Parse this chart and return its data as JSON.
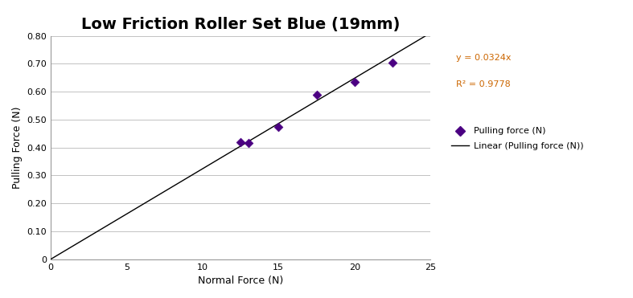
{
  "title": "Low Friction Roller Set Blue (19mm)",
  "xlabel": "Normal Force (N)",
  "ylabel": "Pulling Force (N)",
  "xlim": [
    0,
    25
  ],
  "ylim": [
    0,
    0.8
  ],
  "xticks": [
    0,
    5,
    10,
    15,
    20,
    25
  ],
  "ytick_values": [
    0,
    0.1,
    0.2,
    0.3,
    0.4,
    0.5,
    0.6,
    0.7,
    0.8
  ],
  "ytick_labels": [
    "0",
    "0.10",
    "0.20",
    "0.30",
    "0.40",
    "0.50",
    "0.60",
    "0.70",
    "0.80"
  ],
  "data_x": [
    12.5,
    13.0,
    15.0,
    17.5,
    20.0,
    22.5
  ],
  "data_y": [
    0.42,
    0.415,
    0.475,
    0.59,
    0.635,
    0.705
  ],
  "slope": 0.0324,
  "r_squared": 0.9778,
  "marker_color": "#4B0082",
  "line_color": "#000000",
  "annotation_color": "#CC6600",
  "title_fontsize": 14,
  "axis_label_fontsize": 9,
  "tick_fontsize": 8,
  "legend_fontsize": 8,
  "annotation_fontsize": 8,
  "background_color": "#ffffff",
  "grid_color": "#aaaaaa"
}
